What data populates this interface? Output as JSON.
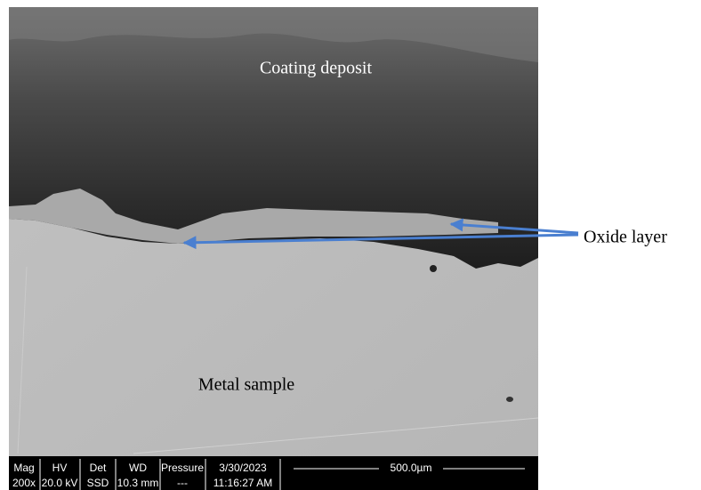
{
  "labels": {
    "coating": "Coating deposit",
    "oxide": "Oxide layer",
    "metal": "Metal sample"
  },
  "info_bar": {
    "columns": [
      {
        "header": "Mag",
        "value": "200x"
      },
      {
        "header": "HV",
        "value": "20.0 kV"
      },
      {
        "header": "Det",
        "value": "SSD"
      },
      {
        "header": "WD",
        "value": "10.3 mm"
      },
      {
        "header": "Pressure",
        "value": "---"
      },
      {
        "header": "3/30/2023",
        "value": "11:16:27 AM"
      }
    ],
    "scale_bar": "500.0µm"
  }
}
